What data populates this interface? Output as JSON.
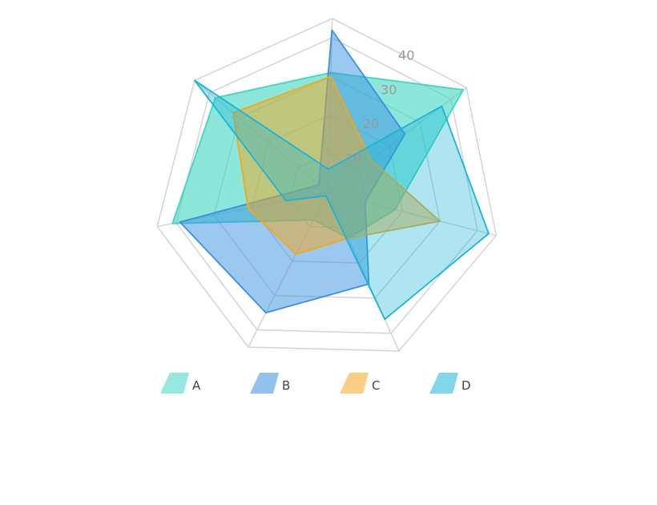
{
  "chart_data": {
    "type": "radar",
    "axes": 7,
    "rlim": [
      0,
      45
    ],
    "ticks": [
      10,
      20,
      30,
      40
    ],
    "grid": true,
    "legend_position": "bottom",
    "series": [
      {
        "name": "A",
        "color": "#40d6c2",
        "fill_opacity": 0.6,
        "values": [
          31,
          44,
          18,
          13,
          8,
          41,
          38
        ]
      },
      {
        "name": "B",
        "color": "#3a8fe0",
        "fill_opacity": 0.5,
        "values": [
          42,
          25,
          10,
          26,
          35,
          39,
          3
        ]
      },
      {
        "name": "C",
        "color": "#f2a81f",
        "fill_opacity": 0.5,
        "values": [
          30,
          14,
          30,
          13,
          18,
          21,
          32
        ]
      },
      {
        "name": "D",
        "color": "#1ab4d6",
        "fill_opacity": 0.35,
        "values": [
          6,
          37,
          43,
          36,
          1,
          11,
          45
        ]
      }
    ]
  }
}
